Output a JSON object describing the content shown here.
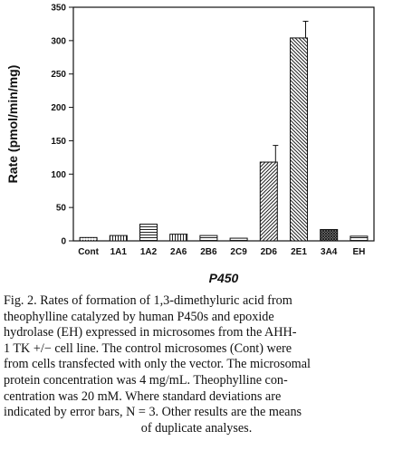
{
  "chart_data": {
    "type": "bar",
    "categories": [
      "Cont",
      "1A1",
      "1A2",
      "2A6",
      "2B6",
      "2C9",
      "2D6",
      "2E1",
      "3A4",
      "EH"
    ],
    "values": [
      5,
      8,
      25,
      10,
      8,
      4,
      118,
      304,
      17,
      7
    ],
    "errors": [
      0,
      0,
      0,
      0,
      0,
      0,
      25,
      25,
      0,
      0
    ],
    "xlabel": "P450",
    "ylabel": "Rate (pmol/min/mg)",
    "ylim": [
      0,
      350
    ],
    "yticks": [
      0,
      50,
      100,
      150,
      200,
      250,
      300,
      350
    ],
    "grid": false,
    "fill_patterns": [
      "dots",
      "vlines",
      "hlines",
      "vlines",
      "hlines",
      "hlines",
      "diag",
      "diag2",
      "cross",
      "hlines"
    ]
  },
  "caption": {
    "lines": [
      "Fig. 2. Rates of formation of 1,3-dimethyluric acid from",
      "theophylline catalyzed by human P450s and epoxide",
      "hydrolase (EH) expressed in microsomes from the AHH-",
      "1 TK +/− cell line. The control microsomes (Cont) were",
      "from cells transfected with only the vector. The microsomal",
      "protein concentration was 4 mg/mL. Theophylline con-",
      "centration was 20 mM. Where standard deviations are",
      "indicated by error bars, N = 3. Other results are the means"
    ],
    "last_line": "of duplicate analyses."
  }
}
